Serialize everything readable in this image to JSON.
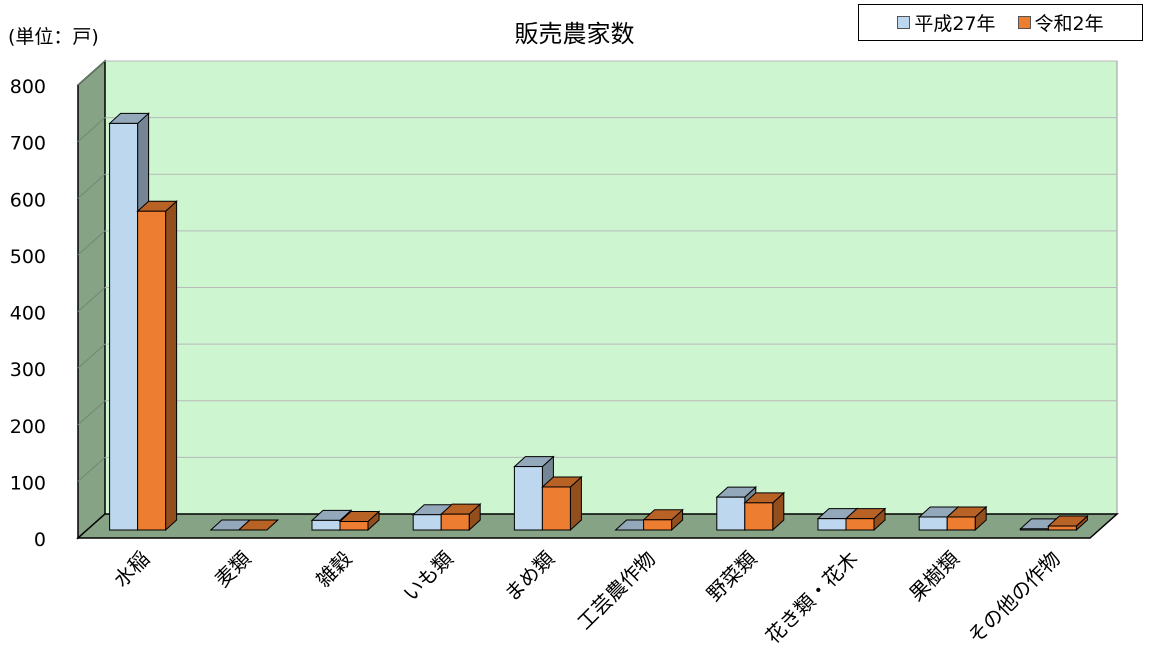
{
  "chart_data": {
    "type": "bar",
    "title": "販売農家数",
    "unit_label": "(単位：戸)",
    "categories": [
      "水稲",
      "麦類",
      "雑穀",
      "いも類",
      "まめ類",
      "工芸農作物",
      "野菜類",
      "花き類・花木",
      "果樹類",
      "その他の作物"
    ],
    "series": [
      {
        "name": "平成27年",
        "color": "#bdd7ee",
        "values": [
          718,
          0,
          17,
          27,
          112,
          0,
          58,
          20,
          23,
          2
        ]
      },
      {
        "name": "令和2年",
        "color": "#ed7d31",
        "values": [
          563,
          0,
          15,
          28,
          76,
          18,
          48,
          20,
          23,
          7
        ]
      }
    ],
    "ylim": [
      0,
      800
    ],
    "yticks": [
      0,
      100,
      200,
      300,
      400,
      500,
      600,
      700,
      800
    ],
    "grid": true,
    "legend_position": "top-right",
    "plot_background": "#ccf5d0",
    "wall_color": "#86a386"
  }
}
